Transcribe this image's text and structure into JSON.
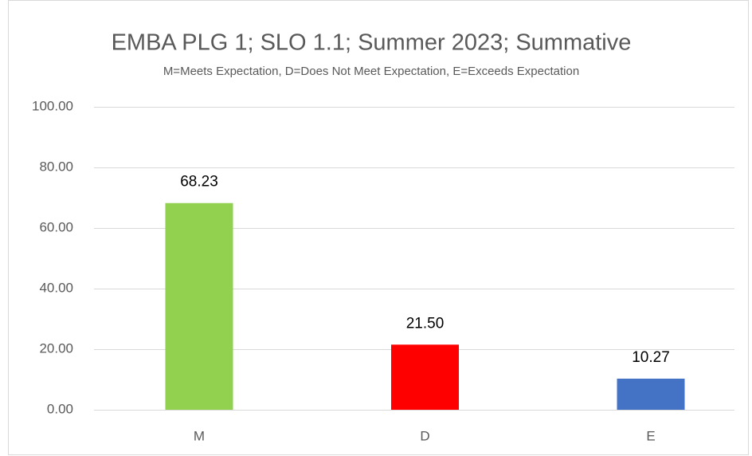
{
  "chart_data": {
    "type": "bar",
    "title": "EMBA PLG 1; SLO 1.1; Summer 2023; Summative",
    "subtitle": "M=Meets Expectation, D=Does Not Meet Expectation, E=Exceeds Expectation",
    "categories": [
      "M",
      "D",
      "E"
    ],
    "values": [
      68.23,
      21.5,
      10.27
    ],
    "value_labels": [
      "68.23",
      "21.50",
      "10.27"
    ],
    "colors": [
      "#92d050",
      "#ff0000",
      "#4472c4"
    ],
    "ylim": [
      0,
      100
    ],
    "yticks": [
      {
        "value": 0,
        "label": "0.00"
      },
      {
        "value": 20,
        "label": "20.00"
      },
      {
        "value": 40,
        "label": "40.00"
      },
      {
        "value": 60,
        "label": "60.00"
      },
      {
        "value": 80,
        "label": "80.00"
      },
      {
        "value": 100,
        "label": "100.00"
      }
    ],
    "grid": true
  }
}
